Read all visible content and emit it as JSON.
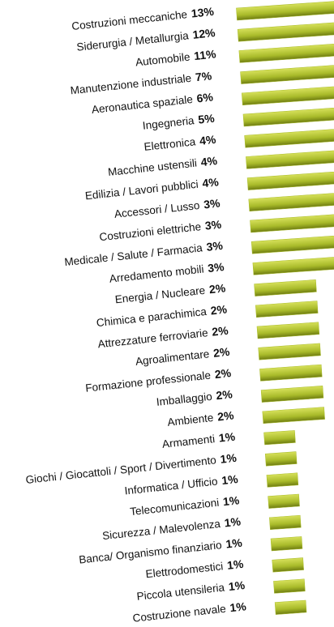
{
  "chart_data": {
    "type": "bar",
    "orientation": "horizontal",
    "color": "#a9bb2a",
    "categories": [
      "Costruzioni meccaniche",
      "Siderurgia / Metallurgia",
      "Automobile",
      "Manutenzione industriale",
      "Aeronautica spaziale",
      "Ingegneria",
      "Elettronica",
      "Macchine ustensili",
      "Edilizia / Lavori pubblici",
      "Accessori / Lusso",
      "Costruzioni elettriche",
      "Medicale / Salute / Farmacia",
      "Arredamento mobili",
      "Energia / Nucleare",
      "Chimica e parachimica",
      "Attrezzature ferroviarie",
      "Agroalimentare",
      "Formazione professionale",
      "Imballaggio",
      "Ambiente",
      "Armamenti",
      "Giochi / Giocattoli / Sport / Divertimento",
      "Informatica / Ufficio",
      "Telecomunicazioni",
      "Sicurezza / Malevolenza",
      "Banca/ Organismo finanziario",
      "Elettrodomestici",
      "Piccola utensileria",
      "Costruzione navale"
    ],
    "values": [
      13,
      12,
      11,
      7,
      6,
      5,
      4,
      4,
      4,
      3,
      3,
      3,
      3,
      2,
      2,
      2,
      2,
      2,
      2,
      2,
      1,
      1,
      1,
      1,
      1,
      1,
      1,
      1,
      1
    ],
    "value_labels": [
      "13%",
      "12%",
      "11%",
      "7%",
      "6%",
      "5%",
      "4%",
      "4%",
      "4%",
      "3%",
      "3%",
      "3%",
      "3%",
      "2%",
      "2%",
      "2%",
      "2%",
      "2%",
      "2%",
      "2%",
      "1%",
      "1%",
      "1%",
      "1%",
      "1%",
      "1%",
      "1%",
      "1%",
      "1%"
    ]
  }
}
